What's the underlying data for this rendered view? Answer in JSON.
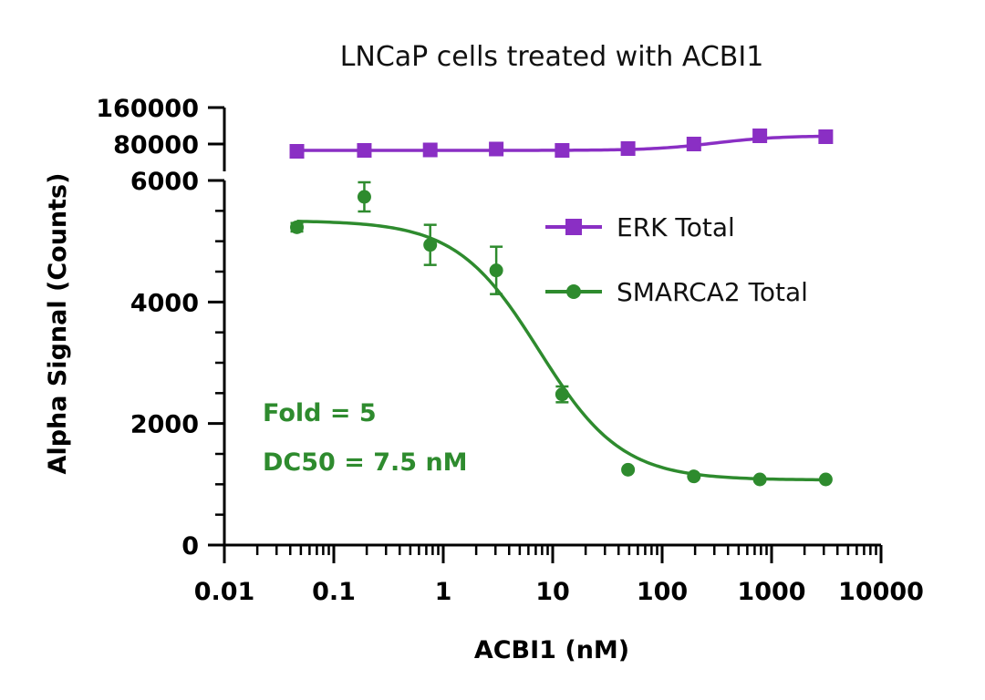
{
  "chart_data": {
    "type": "scatter",
    "title": "LNCaP cells treated with ACBI1",
    "xlabel": "ACBI1 (nM)",
    "ylabel": "Alpha Signal (Counts)",
    "x_scale": "log",
    "xlim": [
      0.01,
      10000
    ],
    "x_ticks": [
      "0.01",
      "0.1",
      "1",
      "10",
      "100",
      "1000",
      "10000"
    ],
    "y_axis_broken": true,
    "ylim_lower": [
      0,
      6000
    ],
    "y_ticks_lower": [
      "0",
      "2000",
      "4000",
      "6000"
    ],
    "ylim_upper": [
      0,
      160000
    ],
    "y_ticks_upper": [
      "80000",
      "160000"
    ],
    "legend_position": "right",
    "series": [
      {
        "name": "ERK Total",
        "color": "#8a2fc4",
        "marker": "square",
        "panel": "upper",
        "x": [
          0.046,
          0.19,
          0.76,
          3.05,
          12.2,
          48.8,
          195,
          781,
          3125
        ],
        "y": [
          64000,
          66000,
          67000,
          69000,
          66000,
          70000,
          80000,
          98000,
          96000
        ],
        "fit_curve": {
          "bottom": 66000,
          "top": 98000,
          "ec50": 300,
          "hill": 1.5
        }
      },
      {
        "name": "SMARCA2 Total",
        "color": "#2e8b2e",
        "marker": "circle",
        "panel": "lower",
        "x": [
          0.046,
          0.19,
          0.76,
          3.05,
          12.2,
          48.8,
          195,
          781,
          3125
        ],
        "y": [
          5230,
          5730,
          4940,
          4520,
          2480,
          1240,
          1130,
          1080,
          1080
        ],
        "error": [
          70,
          240,
          330,
          390,
          130,
          0,
          0,
          0,
          0
        ],
        "fit_curve": {
          "top": 5340,
          "bottom": 1070,
          "ec50": 7.5,
          "hill": 1.15
        }
      }
    ],
    "annotations": [
      "Fold = 5",
      "DC50 = 7.5 nM"
    ],
    "annotation_color": "#2e8b2e"
  }
}
